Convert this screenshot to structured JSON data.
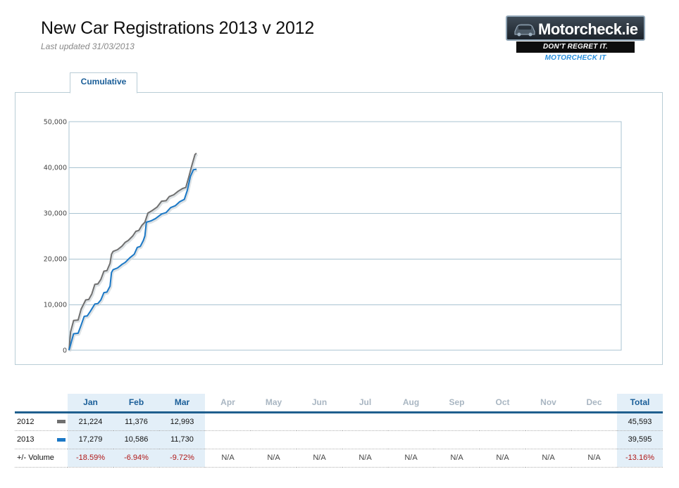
{
  "header": {
    "title": "New Car Registrations 2013 v 2012",
    "updated": "Last updated 31/03/2013"
  },
  "logo": {
    "name": "Motorcheck.ie",
    "slogan_a": "DON'T REGRET IT.",
    "slogan_b": "MOTORCHECK IT"
  },
  "tabs": [
    "Cumulative"
  ],
  "chart_data": {
    "type": "line",
    "title": "",
    "xlabel": "",
    "ylabel": "",
    "ylim": [
      0,
      50000
    ],
    "yticks": [
      "0",
      "10,000",
      "20,000",
      "30,000",
      "40,000",
      "50,000"
    ],
    "grid": true,
    "x_unit": "day of year",
    "xlim": [
      1,
      365
    ],
    "series": [
      {
        "name": "2012",
        "color": "#707070",
        "points": [
          [
            1,
            0
          ],
          [
            2,
            4000
          ],
          [
            4,
            6500
          ],
          [
            7,
            6600
          ],
          [
            9,
            9000
          ],
          [
            12,
            11000
          ],
          [
            14,
            11100
          ],
          [
            16,
            12300
          ],
          [
            18,
            14400
          ],
          [
            20,
            14500
          ],
          [
            22,
            15500
          ],
          [
            24,
            17300
          ],
          [
            26,
            17400
          ],
          [
            28,
            19000
          ],
          [
            29,
            21000
          ],
          [
            30,
            21600
          ],
          [
            33,
            22000
          ],
          [
            36,
            22800
          ],
          [
            38,
            23600
          ],
          [
            40,
            24000
          ],
          [
            43,
            25000
          ],
          [
            45,
            26000
          ],
          [
            47,
            26200
          ],
          [
            49,
            27300
          ],
          [
            51,
            28000
          ],
          [
            53,
            30000
          ],
          [
            56,
            30600
          ],
          [
            59,
            31300
          ],
          [
            62,
            32600
          ],
          [
            65,
            32700
          ],
          [
            67,
            33600
          ],
          [
            70,
            34000
          ],
          [
            73,
            34800
          ],
          [
            76,
            35400
          ],
          [
            78,
            35600
          ],
          [
            80,
            38000
          ],
          [
            82,
            40500
          ],
          [
            84,
            42800
          ],
          [
            85,
            43100
          ]
        ]
      },
      {
        "name": "2013",
        "color": "#1b78c6",
        "points": [
          [
            1,
            0
          ],
          [
            2,
            1200
          ],
          [
            4,
            3600
          ],
          [
            7,
            3700
          ],
          [
            9,
            5500
          ],
          [
            11,
            7400
          ],
          [
            13,
            7500
          ],
          [
            15,
            8500
          ],
          [
            18,
            10100
          ],
          [
            20,
            10200
          ],
          [
            22,
            11000
          ],
          [
            24,
            12600
          ],
          [
            26,
            12700
          ],
          [
            28,
            14000
          ],
          [
            29,
            17000
          ],
          [
            30,
            17600
          ],
          [
            33,
            18000
          ],
          [
            36,
            18800
          ],
          [
            38,
            19200
          ],
          [
            41,
            20200
          ],
          [
            44,
            21000
          ],
          [
            46,
            22500
          ],
          [
            48,
            22700
          ],
          [
            50,
            24000
          ],
          [
            51,
            25000
          ],
          [
            52,
            28000
          ],
          [
            55,
            28300
          ],
          [
            58,
            28800
          ],
          [
            62,
            29800
          ],
          [
            65,
            30100
          ],
          [
            68,
            31200
          ],
          [
            71,
            31600
          ],
          [
            74,
            32500
          ],
          [
            77,
            33000
          ],
          [
            79,
            35000
          ],
          [
            81,
            38000
          ],
          [
            83,
            39500
          ],
          [
            85,
            39600
          ]
        ]
      }
    ]
  },
  "table": {
    "columns": [
      "Jan",
      "Feb",
      "Mar",
      "Apr",
      "May",
      "Jun",
      "Jul",
      "Aug",
      "Sep",
      "Oct",
      "Nov",
      "Dec"
    ],
    "total_label": "Total",
    "rows": [
      {
        "label": "2012",
        "color": "#707070",
        "values": [
          "21,224",
          "11,376",
          "12,993",
          "",
          "",
          "",
          "",
          "",
          "",
          "",
          "",
          ""
        ],
        "total": "45,593"
      },
      {
        "label": "2013",
        "color": "#1b78c6",
        "values": [
          "17,279",
          "10,586",
          "11,730",
          "",
          "",
          "",
          "",
          "",
          "",
          "",
          "",
          ""
        ],
        "total": "39,595"
      },
      {
        "label": "+/- Volume",
        "color": "",
        "values": [
          "-18.59%",
          "-6.94%",
          "-9.72%",
          "N/A",
          "N/A",
          "N/A",
          "N/A",
          "N/A",
          "N/A",
          "N/A",
          "N/A",
          "N/A"
        ],
        "total": "-13.16%"
      }
    ]
  }
}
